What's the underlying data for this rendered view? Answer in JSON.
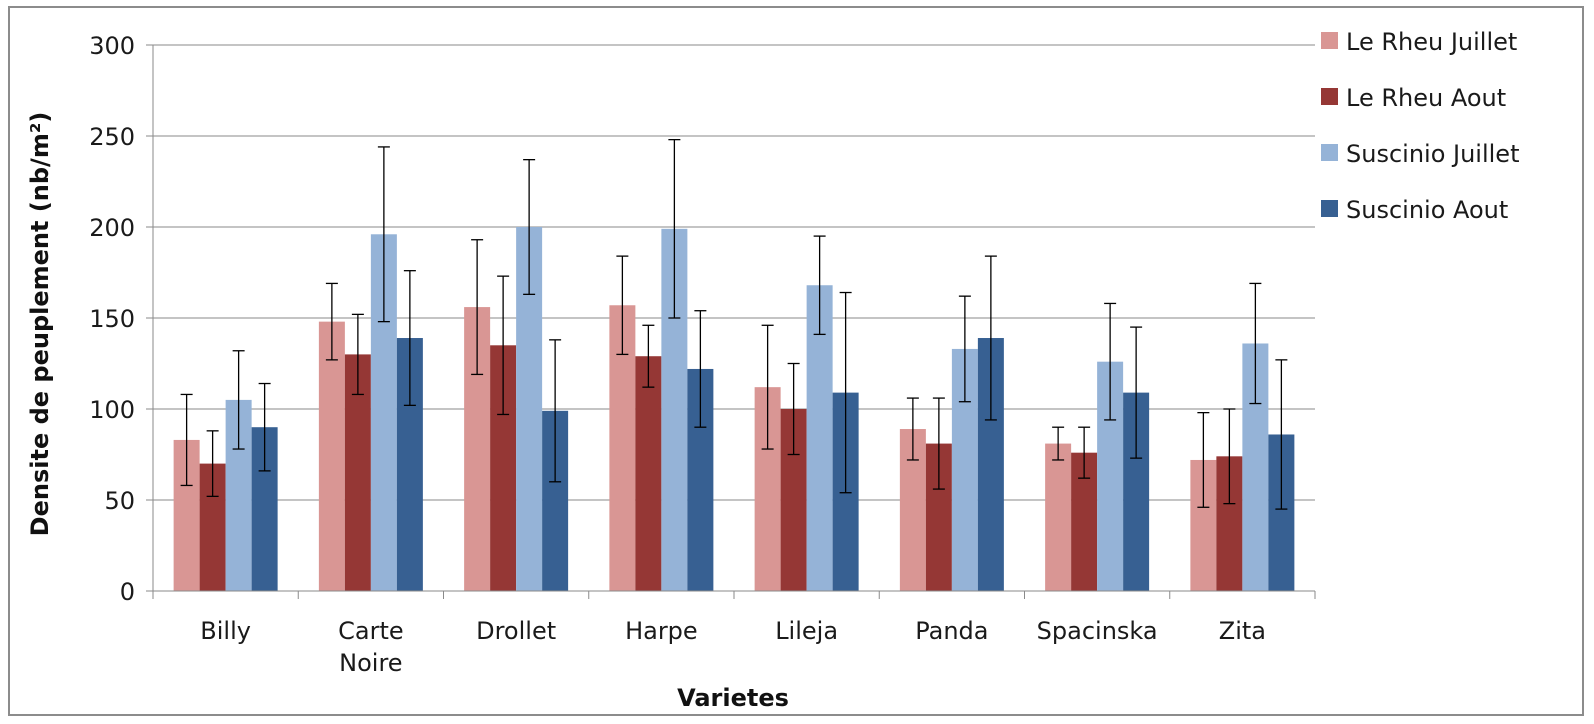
{
  "chart_data": {
    "type": "bar",
    "title": "",
    "xlabel": "Varietes",
    "ylabel": "Densite de peuplement (nb/m²)",
    "ylim": [
      0,
      300
    ],
    "yticks": [
      0,
      50,
      100,
      150,
      200,
      250,
      300
    ],
    "grid": true,
    "legend_position": "right",
    "categories": [
      "Billy",
      "Carte Noire",
      "Drollet",
      "Harpe",
      "Lileja",
      "Panda",
      "Spacinska",
      "Zita"
    ],
    "series": [
      {
        "name": "Le Rheu Juillet",
        "color": "#d99694",
        "values": [
          83,
          148,
          156,
          157,
          112,
          89,
          81,
          72
        ],
        "error": [
          25,
          21,
          37,
          27,
          34,
          17,
          9,
          26
        ]
      },
      {
        "name": "Le Rheu Aout",
        "color": "#953735",
        "values": [
          70,
          130,
          135,
          129,
          100,
          81,
          76,
          74
        ],
        "error": [
          18,
          22,
          38,
          17,
          25,
          25,
          14,
          26
        ]
      },
      {
        "name": "Suscinio Juillet",
        "color": "#95b3d7",
        "values": [
          105,
          196,
          200,
          199,
          168,
          133,
          126,
          136
        ],
        "error": [
          27,
          48,
          37,
          49,
          27,
          29,
          32,
          33
        ]
      },
      {
        "name": "Suscinio Aout",
        "color": "#376092",
        "values": [
          90,
          139,
          99,
          122,
          109,
          139,
          109,
          86
        ],
        "error": [
          24,
          37,
          39,
          32,
          55,
          45,
          36,
          41
        ]
      }
    ]
  }
}
